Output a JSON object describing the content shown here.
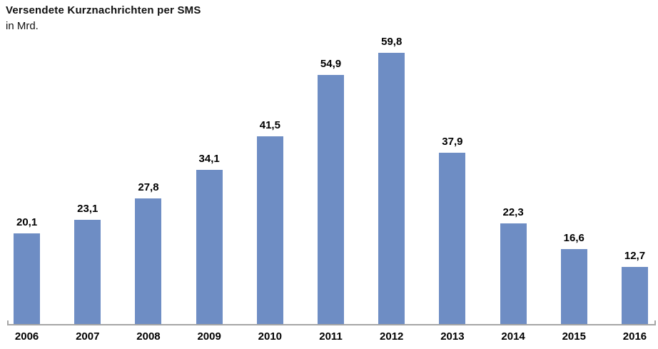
{
  "chart": {
    "title": "Versendete Kurznachrichten per SMS",
    "subtitle": "in Mrd."
  },
  "chart_data": {
    "type": "bar",
    "title": "Versendete Kurznachrichten per SMS",
    "subtitle": "in Mrd.",
    "categories": [
      "2006",
      "2007",
      "2008",
      "2009",
      "2010",
      "2011",
      "2012",
      "2013",
      "2014",
      "2015",
      "2016"
    ],
    "values": [
      20.1,
      23.1,
      27.8,
      34.1,
      41.5,
      54.9,
      59.8,
      37.9,
      22.3,
      16.6,
      12.7
    ],
    "value_labels": [
      "20,1",
      "23,1",
      "27,8",
      "34,1",
      "41,5",
      "54,9",
      "59,8",
      "37,9",
      "22,3",
      "16,6",
      "12,7"
    ],
    "xlabel": "",
    "ylabel": "in Mrd.",
    "ylim": [
      0,
      63
    ],
    "grid": false,
    "legend": false,
    "data_labels": true,
    "bar_color": "#6E8DC4",
    "axis_color": "#A6A6A6",
    "text_color": "#000000"
  }
}
